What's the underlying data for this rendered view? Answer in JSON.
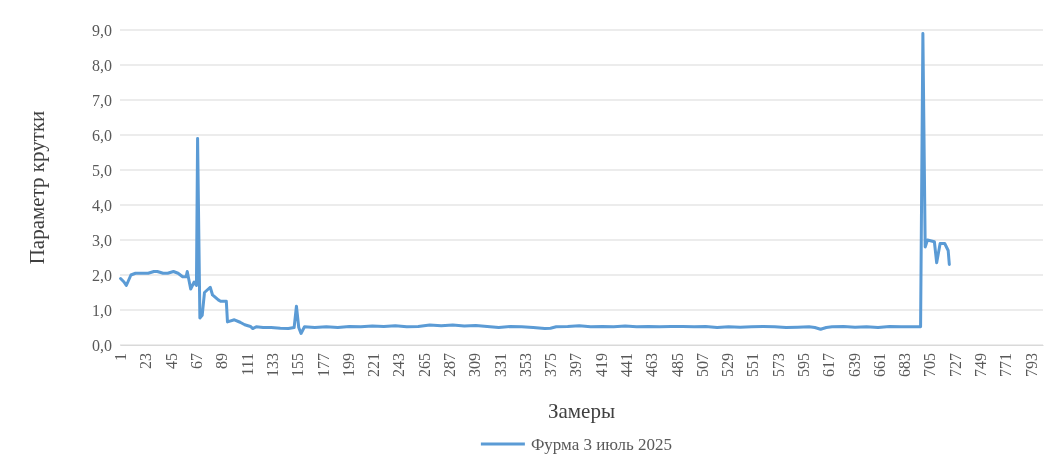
{
  "chart_data": {
    "type": "line",
    "xlabel": "Замеры",
    "ylabel": "Параметр крутки",
    "xlim": [
      0.5,
      803.5
    ],
    "xticks": [
      1,
      23,
      45,
      67,
      89,
      111,
      133,
      155,
      177,
      199,
      221,
      243,
      265,
      287,
      309,
      331,
      353,
      375,
      397,
      419,
      441,
      463,
      485,
      507,
      529,
      551,
      573,
      595,
      617,
      639,
      661,
      683,
      705,
      727,
      749,
      771,
      793
    ],
    "ylim": [
      0,
      9
    ],
    "yticks": [
      {
        "value": 0,
        "label": "0,0"
      },
      {
        "value": 1,
        "label": "1,0"
      },
      {
        "value": 2,
        "label": "2,0"
      },
      {
        "value": 3,
        "label": "3,0"
      },
      {
        "value": 4,
        "label": "4,0"
      },
      {
        "value": 5,
        "label": "5,0"
      },
      {
        "value": 6,
        "label": "6,0"
      },
      {
        "value": 7,
        "label": "7,0"
      },
      {
        "value": 8,
        "label": "8,0"
      },
      {
        "value": 9,
        "label": "9,0"
      }
    ],
    "grid": "y",
    "legend": "bottom",
    "marker": "none",
    "line_style": "solid",
    "series": [
      {
        "name": "Фурма 3 июль 2025",
        "color": "#5b9bd5",
        "x": [
          1,
          4,
          6,
          10,
          14,
          20,
          25,
          30,
          33,
          38,
          42,
          47,
          51,
          55,
          58,
          59,
          62,
          65,
          67,
          68,
          70,
          72,
          74,
          79,
          81,
          86,
          88,
          93,
          94,
          100,
          105,
          109,
          114,
          116,
          119,
          125,
          132,
          140,
          147,
          152,
          154,
          156,
          158,
          161,
          170,
          180,
          190,
          200,
          210,
          220,
          230,
          240,
          250,
          260,
          270,
          280,
          290,
          300,
          310,
          320,
          330,
          340,
          350,
          360,
          370,
          375,
          380,
          390,
          400,
          410,
          420,
          430,
          440,
          450,
          460,
          470,
          480,
          490,
          500,
          510,
          520,
          530,
          540,
          550,
          560,
          570,
          580,
          590,
          600,
          605,
          610,
          615,
          620,
          630,
          640,
          650,
          660,
          670,
          680,
          690,
          697,
          699,
          701,
          703,
          709,
          711,
          714,
          718,
          721,
          722
        ],
        "values": [
          1.9,
          1.8,
          1.7,
          2.0,
          2.05,
          2.05,
          2.05,
          2.1,
          2.1,
          2.05,
          2.05,
          2.1,
          2.05,
          1.95,
          1.95,
          2.1,
          1.6,
          1.8,
          1.7,
          5.9,
          0.77,
          0.85,
          1.5,
          1.65,
          1.43,
          1.29,
          1.25,
          1.25,
          0.66,
          0.72,
          0.65,
          0.58,
          0.53,
          0.47,
          0.52,
          0.5,
          0.5,
          0.48,
          0.47,
          0.5,
          1.11,
          0.5,
          0.33,
          0.52,
          0.5,
          0.52,
          0.5,
          0.53,
          0.52,
          0.54,
          0.53,
          0.55,
          0.52,
          0.53,
          0.57,
          0.55,
          0.57,
          0.54,
          0.56,
          0.53,
          0.5,
          0.53,
          0.52,
          0.5,
          0.47,
          0.48,
          0.52,
          0.53,
          0.55,
          0.52,
          0.53,
          0.52,
          0.54,
          0.52,
          0.53,
          0.52,
          0.53,
          0.53,
          0.52,
          0.53,
          0.5,
          0.52,
          0.51,
          0.52,
          0.53,
          0.52,
          0.5,
          0.51,
          0.52,
          0.5,
          0.45,
          0.5,
          0.52,
          0.53,
          0.51,
          0.52,
          0.5,
          0.53,
          0.52,
          0.52,
          0.52,
          8.9,
          2.8,
          3.0,
          2.95,
          2.35,
          2.9,
          2.9,
          2.7,
          2.3
        ]
      }
    ]
  }
}
